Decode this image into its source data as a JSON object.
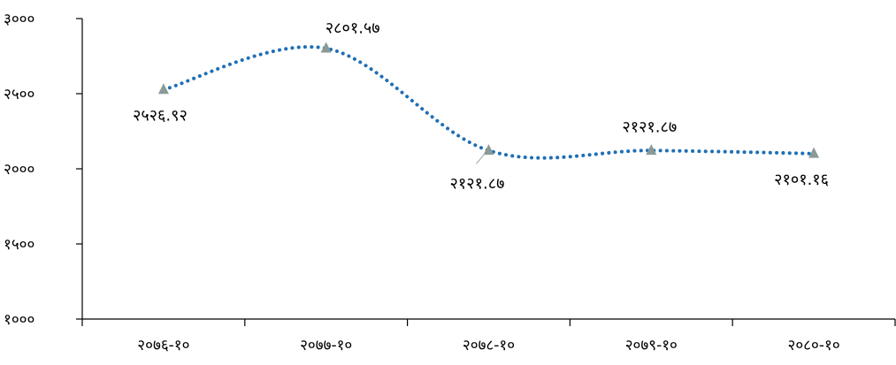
{
  "chart_data": {
    "type": "line",
    "title": "",
    "xlabel": "",
    "ylabel": "",
    "categories": [
      "२०७६-१०",
      "२०७७-१०",
      "२०७८-१०",
      "२०७९-१०",
      "२०८०-१०"
    ],
    "series": [
      {
        "values": [
          2526.92,
          2801.57,
          2121.87,
          2121.87,
          2101.16
        ],
        "labels": [
          "२५२६.९२",
          "२८०१.५७",
          "२१२१.८७",
          "२१२१.८७",
          "२१०१.१६"
        ],
        "color": "#1f6fb5",
        "marker": "triangle",
        "marker_color": "#8a9a96",
        "line_style": "dotted",
        "smooth": true
      }
    ],
    "ylim": [
      1000,
      3000
    ],
    "yticks": [
      1000,
      1500,
      2000,
      2500,
      3000
    ],
    "ytick_labels": [
      "१०००",
      "१५००",
      "२०००",
      "२५००",
      "३०००"
    ],
    "grid": false,
    "legend": "none"
  }
}
